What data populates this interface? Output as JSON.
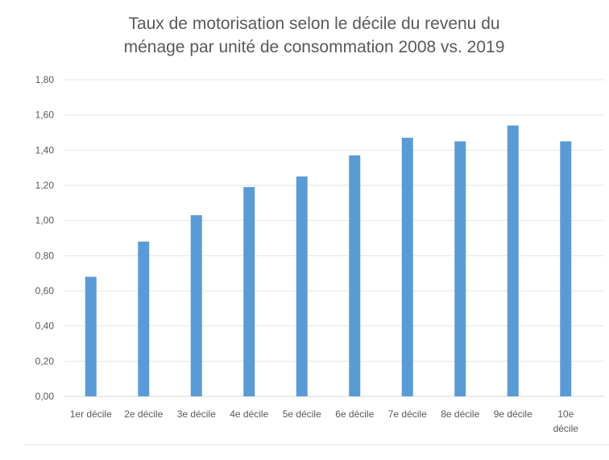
{
  "chart_data": {
    "type": "bar",
    "title_line1": "Taux de motorisation selon le décile du revenu du",
    "title_line2": "ménage par unité de consommation 2008 vs. 2019",
    "categories": [
      "1er décile",
      "2e décile",
      "3e décile",
      "4e décile",
      "5e décile",
      "6e décile",
      "7e décile",
      "8e décile",
      "9e décile",
      "10e décile"
    ],
    "values": [
      0.68,
      0.88,
      1.03,
      1.19,
      1.25,
      1.37,
      1.47,
      1.45,
      1.54,
      1.45
    ],
    "ylim": [
      0,
      1.8
    ],
    "yticks": [
      "0,00",
      "0,20",
      "0,40",
      "0,60",
      "0,80",
      "1,00",
      "1,20",
      "1,40",
      "1,60",
      "1,80"
    ],
    "xlabel": "",
    "ylabel": "",
    "grid": true,
    "bar_color": "#5b9bd5"
  }
}
